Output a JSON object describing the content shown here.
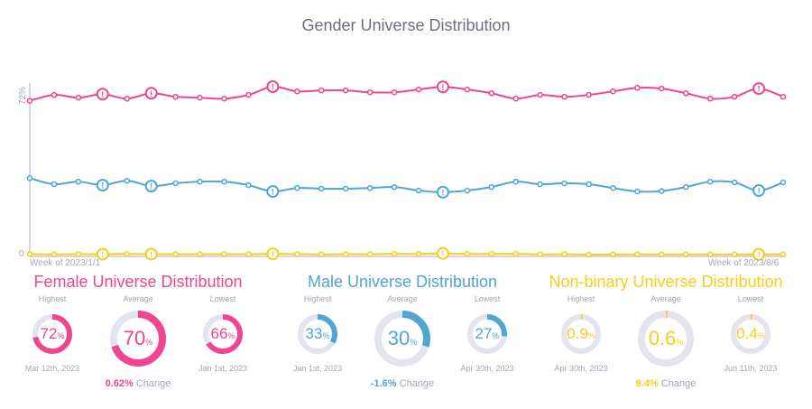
{
  "title": "Gender Universe Distribution",
  "chart_data": {
    "type": "line",
    "title": "Gender Universe Distribution",
    "x_start_label": "Week of 2023/1/1",
    "x_end_label": "Week of 2023/8/6",
    "y_tick_labels": [
      "0",
      "72%"
    ],
    "ylim": [
      0,
      72
    ],
    "grid": false,
    "alert_point_indices": [
      3,
      5,
      10,
      17,
      30
    ],
    "series": [
      {
        "key": "female",
        "color": "#f0458f",
        "values": [
          66,
          68.5,
          67.3,
          68.8,
          66.9,
          69.2,
          67.7,
          67.3,
          66.9,
          68.5,
          72,
          70,
          70.4,
          70.4,
          69.6,
          69.6,
          70.8,
          71.9,
          70.8,
          69.2,
          66.9,
          68.5,
          67.7,
          68.5,
          70,
          71.5,
          71.2,
          69.2,
          66.9,
          67.7,
          71.2,
          67.7
        ]
      },
      {
        "key": "male",
        "color": "#4fa6d3",
        "values": [
          33,
          30.4,
          31.5,
          30,
          31.9,
          29.6,
          30.8,
          31.5,
          31.5,
          30,
          27.3,
          28.8,
          28.5,
          28.5,
          28.8,
          29.2,
          27.7,
          27,
          27.7,
          29.2,
          31.5,
          30.4,
          30.8,
          30.4,
          28.8,
          27.3,
          27.5,
          29.2,
          31.5,
          31.2,
          27.7,
          31.2
        ]
      },
      {
        "key": "nonbinary",
        "color": "#f7ce1b",
        "values": [
          0.6,
          0.5,
          0.6,
          0.6,
          0.7,
          0.6,
          0.6,
          0.6,
          0.6,
          0.6,
          0.7,
          0.6,
          0.5,
          0.6,
          0.6,
          0.7,
          0.7,
          0.9,
          0.7,
          0.7,
          0.7,
          0.5,
          0.6,
          0.4,
          0.5,
          0.5,
          0.5,
          0.5,
          0.5,
          0.5,
          0.5,
          0.5
        ]
      }
    ]
  },
  "sections": [
    {
      "title": "Female Universe Distribution",
      "color": "#f0458f",
      "highest": {
        "label": "Highest",
        "value": "72",
        "date": "Mar 12th, 2023"
      },
      "average": {
        "label": "Average",
        "value": "70"
      },
      "lowest": {
        "label": "Lowest",
        "value": "66",
        "date": "Jan 1st, 2023"
      },
      "change": "0.62%",
      "change_label": "Change"
    },
    {
      "title": "Male Universe Distribution",
      "color": "#4fa6d3",
      "highest": {
        "label": "Highest",
        "value": "33",
        "date": "Jan 1st, 2023"
      },
      "average": {
        "label": "Average",
        "value": "30"
      },
      "lowest": {
        "label": "Lowest",
        "value": "27",
        "date": "Apr 30th, 2023"
      },
      "change": "-1.6%",
      "change_label": "Change"
    },
    {
      "title": "Non-binary Universe Distribution",
      "color": "#f7ce1b",
      "highest": {
        "label": "Highest",
        "value": "0.9",
        "date": "Apr 30th, 2023"
      },
      "average": {
        "label": "Average",
        "value": "0.6"
      },
      "lowest": {
        "label": "Lowest",
        "value": "0.4",
        "date": "Jun 11th, 2023"
      },
      "change": "9.4%",
      "change_label": "Change"
    }
  ],
  "percent_sign": "%"
}
